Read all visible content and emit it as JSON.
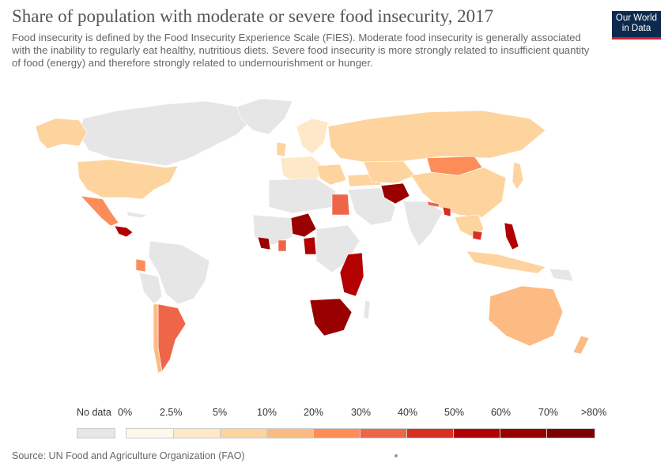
{
  "header": {
    "title": "Share of population with moderate or severe food insecurity, 2017",
    "subtitle": "Food insecurity is defined by the Food Insecurity Experience Scale (FIES). Moderate food insecurity is generally associated with the inability to regularly eat healthy, nutritious diets. Severe food insecurity is more strongly related to insufficient quantity of food (energy) and therefore strongly related to undernourishment or hunger."
  },
  "logo": {
    "line1": "Our World",
    "line2": "in Data"
  },
  "legend": {
    "no_data_label": "No data",
    "no_data_color": "#e6e6e6",
    "bins": [
      {
        "label": "0%",
        "color": "#fff7ec"
      },
      {
        "label": "2.5%",
        "color": "#fee8c8"
      },
      {
        "label": "5%",
        "color": "#fdd49e"
      },
      {
        "label": "10%",
        "color": "#fdbb84"
      },
      {
        "label": "20%",
        "color": "#fc8d59"
      },
      {
        "label": "30%",
        "color": "#ef6548"
      },
      {
        "label": "40%",
        "color": "#d7301f"
      },
      {
        "label": "50%",
        "color": "#b30000"
      },
      {
        "label": "60%",
        "color": "#990000"
      },
      {
        "label": "70%",
        "color": "#7f0000"
      },
      {
        "label": ">80%",
        "color": ""
      }
    ]
  },
  "source": "Source: UN Food and Agriculture Organization (FAO)"
}
